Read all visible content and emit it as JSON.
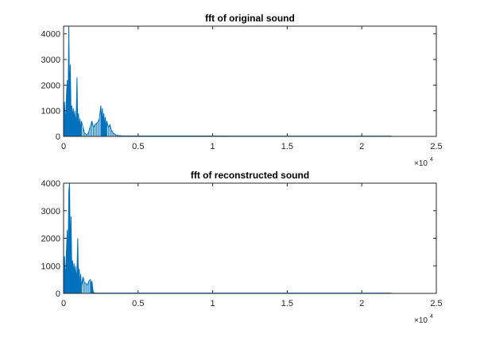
{
  "colors": {
    "series": "#0072BD",
    "axes": "#262626",
    "background": "#ffffff"
  },
  "chart_data": [
    {
      "type": "line",
      "title": "fft of original sound",
      "xlabel": "",
      "ylabel": "",
      "xlim": [
        0,
        25000
      ],
      "ylim": [
        0,
        4300
      ],
      "xticks": [
        0,
        5000,
        10000,
        15000,
        20000,
        25000
      ],
      "xtick_labels": [
        "0",
        "0.5",
        "1",
        "1.5",
        "2",
        "2.5"
      ],
      "x_multiplier": {
        "base": "×10",
        "exponent": "4"
      },
      "yticks": [
        0,
        1000,
        2000,
        3000,
        4000
      ],
      "ytick_labels": [
        "0",
        "1000",
        "2000",
        "3000",
        "4000"
      ],
      "grid": false,
      "series": [
        {
          "x": [
            0,
            30,
            60,
            100,
            150,
            200,
            250,
            300,
            350,
            400,
            450,
            500,
            550,
            600,
            650,
            700,
            750,
            800,
            850,
            900,
            950,
            1000,
            1050,
            1100,
            1150,
            1200,
            1300,
            1400,
            1500,
            1600,
            1700,
            1800,
            1900,
            2000,
            2100,
            2200,
            2300,
            2400,
            2500,
            2550,
            2600,
            2650,
            2700,
            2750,
            2800,
            2850,
            2900,
            3000,
            3100,
            3200,
            3300,
            3400,
            3500,
            3600,
            3800,
            4000,
            5000,
            8000,
            12000,
            16000,
            20000,
            22000
          ],
          "y": [
            1300,
            800,
            1350,
            600,
            900,
            1700,
            2200,
            1100,
            4300,
            1500,
            2800,
            900,
            1200,
            700,
            1100,
            600,
            1000,
            500,
            800,
            2300,
            400,
            900,
            300,
            700,
            250,
            600,
            350,
            150,
            80,
            60,
            200,
            400,
            600,
            350,
            450,
            500,
            550,
            700,
            1200,
            600,
            1100,
            500,
            900,
            400,
            750,
            300,
            600,
            350,
            450,
            250,
            150,
            100,
            60,
            40,
            25,
            18,
            15,
            14,
            13,
            12,
            12,
            10
          ]
        }
      ]
    },
    {
      "type": "line",
      "title": "fft of reconstructed sound",
      "xlabel": "",
      "ylabel": "",
      "xlim": [
        0,
        25000
      ],
      "ylim": [
        0,
        4000
      ],
      "xticks": [
        0,
        5000,
        10000,
        15000,
        20000,
        25000
      ],
      "xtick_labels": [
        "0",
        "0.5",
        "1",
        "1.5",
        "2",
        "2.5"
      ],
      "x_multiplier": {
        "base": "×10",
        "exponent": "4"
      },
      "yticks": [
        0,
        1000,
        2000,
        3000,
        4000
      ],
      "ytick_labels": [
        "0",
        "1000",
        "2000",
        "3000",
        "4000"
      ],
      "grid": false,
      "series": [
        {
          "x": [
            0,
            30,
            60,
            100,
            150,
            200,
            250,
            300,
            350,
            400,
            450,
            500,
            550,
            600,
            650,
            700,
            750,
            800,
            850,
            900,
            950,
            1000,
            1050,
            1100,
            1150,
            1200,
            1300,
            1400,
            1500,
            1600,
            1700,
            1800,
            1850,
            1900,
            1950,
            2000,
            2100,
            2500,
            5000,
            10000,
            15000,
            20000,
            22000
          ],
          "y": [
            1300,
            800,
            1350,
            600,
            900,
            1700,
            2300,
            1100,
            3700,
            4000,
            1500,
            2800,
            900,
            1200,
            700,
            1100,
            600,
            1000,
            500,
            800,
            2000,
            400,
            900,
            300,
            700,
            250,
            600,
            400,
            350,
            300,
            450,
            500,
            300,
            450,
            200,
            30,
            15,
            12,
            12,
            12,
            12,
            12,
            10
          ]
        }
      ]
    }
  ]
}
